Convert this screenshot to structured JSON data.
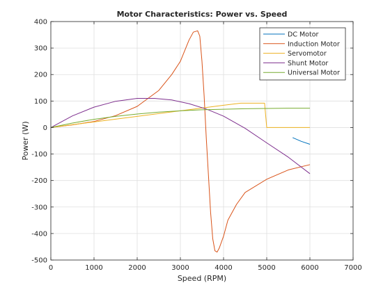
{
  "chart_data": {
    "type": "line",
    "title": "Motor Characteristics: Power vs. Speed",
    "xlabel": "Speed (RPM)",
    "ylabel": "Power (W)",
    "xlim": [
      0,
      7000
    ],
    "ylim": [
      -500,
      400
    ],
    "xticks": [
      0,
      1000,
      2000,
      3000,
      4000,
      5000,
      6000,
      7000
    ],
    "yticks": [
      -500,
      -400,
      -300,
      -200,
      -100,
      0,
      100,
      200,
      300,
      400
    ],
    "grid": true,
    "legend_position": "top-right",
    "series": [
      {
        "name": "DC Motor",
        "color": "#0072BD",
        "x": [
          5600,
          5800,
          6000
        ],
        "y": [
          -38,
          -52,
          -63
        ]
      },
      {
        "name": "Induction Motor",
        "color": "#D95319",
        "x": [
          0,
          500,
          1000,
          1500,
          2000,
          2500,
          2800,
          3000,
          3200,
          3300,
          3400,
          3450,
          3500,
          3550,
          3600,
          3650,
          3700,
          3750,
          3800,
          3850,
          3900,
          4000,
          4100,
          4300,
          4500,
          5000,
          5500,
          6000
        ],
        "y": [
          0,
          10,
          23,
          45,
          80,
          140,
          200,
          250,
          330,
          360,
          365,
          345,
          250,
          120,
          -40,
          -180,
          -320,
          -420,
          -465,
          -470,
          -455,
          -410,
          -350,
          -290,
          -245,
          -195,
          -160,
          -140
        ]
      },
      {
        "name": "Servomotor",
        "color": "#EDB120",
        "x": [
          0,
          1000,
          2000,
          3000,
          4000,
          4400,
          4950,
          5000,
          6000
        ],
        "y": [
          0,
          21,
          42,
          63,
          84,
          92,
          92,
          0,
          0
        ]
      },
      {
        "name": "Shunt Motor",
        "color": "#7E2F8E",
        "x": [
          0,
          500,
          1000,
          1500,
          2000,
          2400,
          2800,
          3200,
          3600,
          4000,
          4500,
          5000,
          5500,
          6000
        ],
        "y": [
          0,
          44,
          77,
          99,
          110,
          110,
          104,
          90,
          70,
          43,
          -3,
          -58,
          -112,
          -174
        ]
      },
      {
        "name": "Universal Motor",
        "color": "#77AC30",
        "x": [
          0,
          500,
          1000,
          1500,
          2000,
          2500,
          3000,
          3500,
          4000,
          4500,
          5000,
          5500,
          6000
        ],
        "y": [
          0,
          17,
          31,
          42,
          51,
          58,
          63,
          67,
          69,
          71,
          72,
          73,
          73
        ]
      }
    ]
  }
}
